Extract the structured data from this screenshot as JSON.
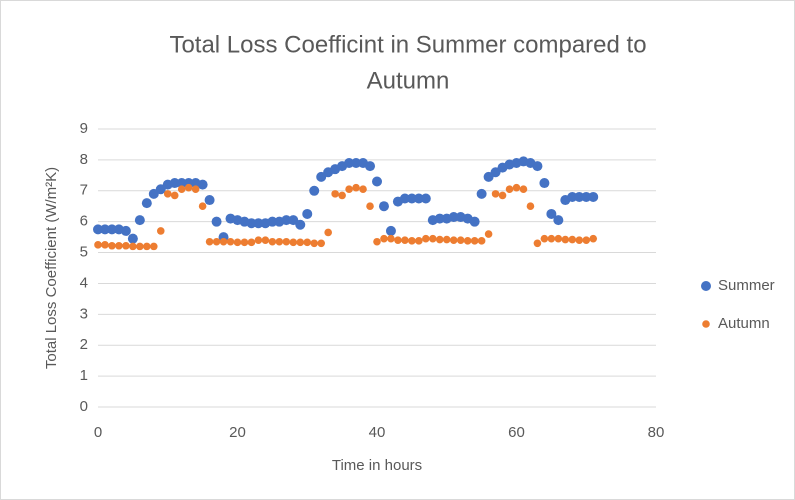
{
  "chart_data": {
    "type": "scatter",
    "title": "Total Loss Coefficint in Summer compared to",
    "title_line2": "Autumn",
    "xlabel": "Time in hours",
    "ylabel": "Total Loss Coefficient (W/m²K)",
    "x": [
      0,
      1,
      2,
      3,
      4,
      5,
      6,
      7,
      8,
      9,
      10,
      11,
      12,
      13,
      14,
      15,
      16,
      17,
      18,
      19,
      20,
      21,
      22,
      23,
      24,
      25,
      26,
      27,
      28,
      29,
      30,
      31,
      32,
      33,
      34,
      35,
      36,
      37,
      38,
      39,
      40,
      41,
      42,
      43,
      44,
      45,
      46,
      47,
      48,
      49,
      50,
      51,
      52,
      53,
      54,
      55,
      56,
      57,
      58,
      59,
      60,
      61,
      62,
      63,
      64,
      65,
      66,
      67,
      68,
      69,
      70,
      71
    ],
    "series": [
      {
        "name": "Summer",
        "color": "#4472c4",
        "values": [
          5.75,
          5.75,
          5.75,
          5.75,
          5.7,
          5.45,
          6.05,
          6.6,
          6.9,
          7.05,
          7.2,
          7.25,
          7.25,
          7.25,
          7.25,
          7.2,
          6.7,
          6.0,
          5.5,
          6.1,
          6.05,
          6.0,
          5.95,
          5.95,
          5.95,
          6.0,
          6.0,
          6.05,
          6.05,
          5.9,
          6.25,
          7.0,
          7.45,
          7.6,
          7.7,
          7.8,
          7.9,
          7.9,
          7.9,
          7.8,
          7.3,
          6.5,
          5.7,
          6.65,
          6.75,
          6.75,
          6.75,
          6.75,
          6.05,
          6.1,
          6.1,
          6.15,
          6.15,
          6.1,
          6.0,
          6.9,
          7.45,
          7.6,
          7.75,
          7.85,
          7.9,
          7.95,
          7.9,
          7.8,
          7.25,
          6.25,
          6.05,
          6.7,
          6.8,
          6.8,
          6.8,
          6.8
        ]
      },
      {
        "name": "Autumn",
        "color": "#ed7d31",
        "values": [
          5.25,
          5.25,
          5.22,
          5.22,
          5.22,
          5.2,
          5.2,
          5.2,
          5.2,
          5.7,
          6.9,
          6.85,
          7.05,
          7.1,
          7.05,
          6.5,
          5.35,
          5.35,
          5.35,
          5.35,
          5.33,
          5.33,
          5.33,
          5.4,
          5.4,
          5.35,
          5.35,
          5.35,
          5.33,
          5.33,
          5.33,
          5.3,
          5.3,
          5.65,
          6.9,
          6.85,
          7.05,
          7.1,
          7.05,
          6.5,
          5.35,
          5.45,
          5.45,
          5.4,
          5.4,
          5.38,
          5.38,
          5.45,
          5.45,
          5.42,
          5.42,
          5.4,
          5.4,
          5.38,
          5.38,
          5.38,
          5.6,
          6.9,
          6.85,
          7.05,
          7.1,
          7.05,
          6.5,
          5.3,
          5.45,
          5.45,
          5.45,
          5.42,
          5.42,
          5.4,
          5.4,
          5.45
        ]
      }
    ],
    "xlim": [
      0,
      80
    ],
    "xticks": [
      0,
      20,
      40,
      60,
      80
    ],
    "ylim": [
      0,
      9
    ],
    "yticks": [
      0,
      1,
      2,
      3,
      4,
      5,
      6,
      7,
      8,
      9
    ],
    "grid": true,
    "legend": "right"
  }
}
